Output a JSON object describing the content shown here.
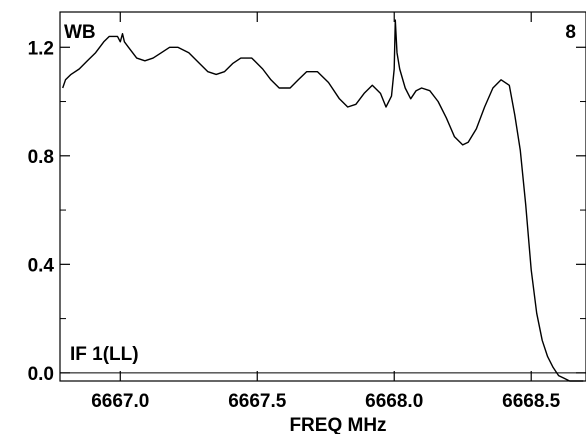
{
  "chart_data": {
    "type": "line",
    "title": "",
    "xlabel": "FREQ MHz",
    "ylabel": "",
    "xlim": [
      6666.78,
      6668.7
    ],
    "ylim": [
      -0.03,
      1.33
    ],
    "x_ticks": [
      6667.0,
      6667.5,
      6668.0,
      6668.5
    ],
    "x_tick_labels": [
      "6667.0",
      "6667.5",
      "6668.0",
      "6668.5"
    ],
    "y_ticks": [
      0.0,
      0.4,
      0.8,
      1.2
    ],
    "y_tick_labels": [
      "0.0",
      "0.4",
      "0.8",
      "1.2"
    ],
    "y_minor_ticks": [
      0.2,
      0.6,
      1.0
    ],
    "reference_line_y": 0.0,
    "grid": false,
    "legend": "none",
    "corner_labels": {
      "top_left": "WB",
      "top_right": "8",
      "bottom_left": "IF 1(LL)"
    },
    "line_color": "#000000",
    "series": [
      {
        "x": [
          6666.79,
          6666.8,
          6666.82,
          6666.85,
          6666.88,
          6666.91,
          6666.94,
          6666.96,
          6666.99,
          6667.0,
          6667.008,
          6667.015,
          6667.03,
          6667.06,
          6667.09,
          6667.12,
          6667.15,
          6667.18,
          6667.21,
          6667.25,
          6667.29,
          6667.32,
          6667.35,
          6667.38,
          6667.41,
          6667.44,
          6667.48,
          6667.52,
          6667.55,
          6667.58,
          6667.62,
          6667.65,
          6667.68,
          6667.72,
          6667.76,
          6667.8,
          6667.83,
          6667.86,
          6667.89,
          6667.92,
          6667.95,
          6667.97,
          6667.99,
          6668.0,
          6668.004,
          6668.01,
          6668.02,
          6668.04,
          6668.06,
          6668.08,
          6668.1,
          6668.13,
          6668.16,
          6668.19,
          6668.22,
          6668.25,
          6668.27,
          6668.3,
          6668.33,
          6668.36,
          6668.39,
          6668.42,
          6668.44,
          6668.46,
          6668.48,
          6668.5,
          6668.52,
          6668.54,
          6668.56,
          6668.58,
          6668.6,
          6668.62,
          6668.64,
          6668.66,
          6668.69
        ],
        "y": [
          1.05,
          1.08,
          1.1,
          1.12,
          1.15,
          1.18,
          1.22,
          1.24,
          1.24,
          1.22,
          1.25,
          1.22,
          1.2,
          1.16,
          1.15,
          1.16,
          1.18,
          1.2,
          1.2,
          1.18,
          1.14,
          1.11,
          1.1,
          1.11,
          1.14,
          1.16,
          1.16,
          1.12,
          1.08,
          1.05,
          1.05,
          1.08,
          1.11,
          1.11,
          1.07,
          1.01,
          0.98,
          0.99,
          1.03,
          1.06,
          1.03,
          0.98,
          1.02,
          1.12,
          1.3,
          1.18,
          1.12,
          1.05,
          1.01,
          1.04,
          1.05,
          1.04,
          1.0,
          0.94,
          0.87,
          0.84,
          0.85,
          0.9,
          0.98,
          1.05,
          1.08,
          1.06,
          0.95,
          0.82,
          0.62,
          0.38,
          0.22,
          0.12,
          0.06,
          0.02,
          -0.01,
          -0.02,
          -0.03,
          -0.03,
          -0.03
        ]
      }
    ]
  }
}
